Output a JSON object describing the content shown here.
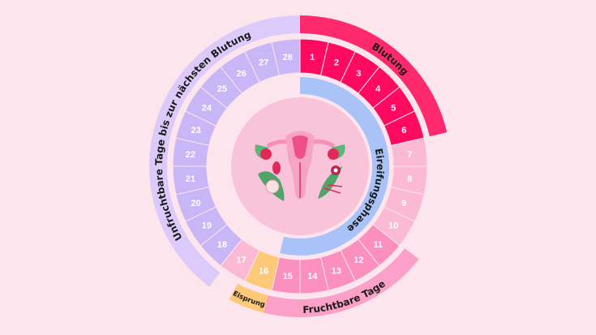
{
  "labels": {
    "bleeding": "Blutung",
    "infertile": "Unfruchtbare Tage bis zur nächsten Blutung",
    "fertile": "Fruchtbare Tage",
    "ovulation": "Eisprung",
    "follicular": "Eireifungsphase"
  },
  "cycle_days": [
    {
      "day": "1",
      "phase": "bleeding"
    },
    {
      "day": "2",
      "phase": "bleeding"
    },
    {
      "day": "3",
      "phase": "bleeding"
    },
    {
      "day": "4",
      "phase": "bleeding"
    },
    {
      "day": "5",
      "phase": "bleeding"
    },
    {
      "day": "6",
      "phase": "bleeding"
    },
    {
      "day": "7",
      "phase": "pre-fertile"
    },
    {
      "day": "8",
      "phase": "pre-fertile"
    },
    {
      "day": "9",
      "phase": "pre-fertile"
    },
    {
      "day": "10",
      "phase": "pre-fertile"
    },
    {
      "day": "11",
      "phase": "fertile"
    },
    {
      "day": "12",
      "phase": "fertile"
    },
    {
      "day": "13",
      "phase": "fertile"
    },
    {
      "day": "14",
      "phase": "fertile"
    },
    {
      "day": "15",
      "phase": "fertile"
    },
    {
      "day": "16",
      "phase": "ovulation"
    },
    {
      "day": "17",
      "phase": "pre-fertile"
    },
    {
      "day": "18",
      "phase": "infertile"
    },
    {
      "day": "19",
      "phase": "infertile"
    },
    {
      "day": "20",
      "phase": "infertile"
    },
    {
      "day": "21",
      "phase": "infertile"
    },
    {
      "day": "22",
      "phase": "infertile"
    },
    {
      "day": "23",
      "phase": "infertile"
    },
    {
      "day": "24",
      "phase": "infertile"
    },
    {
      "day": "25",
      "phase": "infertile"
    },
    {
      "day": "26",
      "phase": "infertile"
    },
    {
      "day": "27",
      "phase": "infertile"
    },
    {
      "day": "28",
      "phase": "infertile"
    }
  ],
  "colors": {
    "background": "#fde5ed",
    "bleeding": "#ff0a5e",
    "bleeding_arc": "#ff2a6e",
    "pre-fertile": "#fbb9d4",
    "fertile": "#fb90bf",
    "fertile_arc": "#fba0c8",
    "ovulation": "#fdc878",
    "infertile": "#c8b6f6",
    "infertile_arc": "#dccbfa",
    "follicular": "#a9c3f8",
    "center": "#f9c3d9"
  },
  "illustration": "uterus-with-flowers-icon"
}
